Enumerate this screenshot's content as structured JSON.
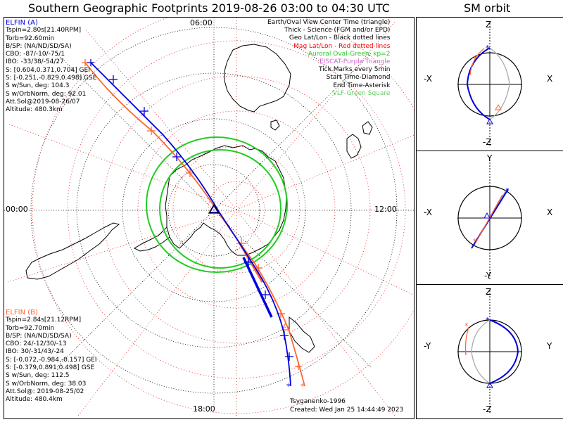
{
  "title": "Southern Geographic Footprints 2019-08-26 03:00 to 04:30 UTC",
  "orbit_title": "SM orbit",
  "map": {
    "time_labels": {
      "top": "06:00",
      "left": "00:00",
      "right": "12:00",
      "bottom": "18:00"
    },
    "legend": [
      {
        "text": "Earth/Oval View Center Time (triangle)",
        "color": "#000000"
      },
      {
        "text": "Thick - Science (FGM and/or EPD)",
        "color": "#000000"
      },
      {
        "text": "Geo Lat/Lon - Black dotted lines",
        "color": "#000000"
      },
      {
        "text": "Mag Lat/Lon - Red dotted lines",
        "color": "#ff0000"
      },
      {
        "text": "Auroral Oval-Green, kp=2",
        "color": "#22cc22"
      },
      {
        "text": "EISCAT-Purple Triangle",
        "color": "#cc66cc"
      },
      {
        "text": "Tick Marks every 5min",
        "color": "#000000"
      },
      {
        "text": "Start Time-Diamond",
        "color": "#000000"
      },
      {
        "text": "End Time-Asterisk",
        "color": "#000000"
      },
      {
        "text": "VLF-Green Square",
        "color": "#66cc66"
      }
    ],
    "model": "Tsyganenko-1996",
    "created": "Created: Wed Jan 25 14:44:49 2023",
    "elfin_a": {
      "name": "ELFIN (A)",
      "color": "#0000dd",
      "lines": [
        "Tspin=2.80s[21.40RPM]",
        "Torb=92.60min",
        "B/SP: (NA/ND/SD/SA)",
        "CBO: -87/-10/-75/1",
        "IBO: -33/38/-54/27",
        "S: [0.604,0.371,0.704] GEI",
        "S: [-0.251,-0.829,0.498] GSE",
        "S w/Sun, deg: 104.3",
        "S w/OrbNorm, deg: 92.01",
        "Att.Sol@2019-08-26/07",
        "Altitude: 480.3km"
      ]
    },
    "elfin_b": {
      "name": "ELFIN (B)",
      "color": "#ff6633",
      "lines": [
        "Tspin=2.84s[21.12RPM]",
        "Torb=92.70min",
        "B/SP: (NA/ND/SD/SA)",
        "CBO: 24/-12/30/-13",
        "IBO: 30/-31/43/-24",
        "S: [-0.072,-0.984,-0.157] GEI",
        "S: [-0.379,0.891,0.498] GSE",
        "S w/Sun, deg: 112.5",
        "S w/OrbNorm, deg: 38.03",
        "Att.Sol@: 2019-08-25/02",
        "Altitude: 480.4km"
      ]
    }
  },
  "orbit_panels": [
    {
      "id": "xz",
      "top": "Z",
      "bottom": "-Z",
      "left": "-X",
      "right": "X"
    },
    {
      "id": "xy",
      "top": "Y",
      "bottom": "-Y",
      "left": "-X",
      "right": "X"
    },
    {
      "id": "yz",
      "top": "Z",
      "bottom": "-Z",
      "left": "-Y",
      "right": "Y"
    }
  ]
}
